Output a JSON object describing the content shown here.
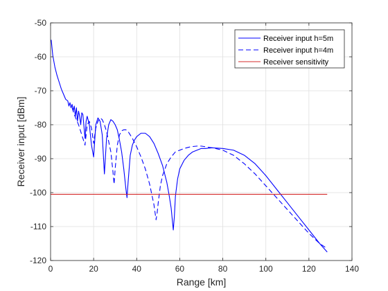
{
  "chart_data": {
    "type": "line",
    "xlabel": "Range [km]",
    "ylabel": "Receiver input [dBm]",
    "xlim": [
      0,
      140
    ],
    "ylim": [
      -120,
      -50
    ],
    "x_ticks": [
      0,
      20,
      40,
      60,
      80,
      100,
      120,
      140
    ],
    "y_ticks": [
      -50,
      -60,
      -70,
      -80,
      -90,
      -100,
      -110,
      -120
    ],
    "grid": true,
    "legend_position": "top-right",
    "series": [
      {
        "name": "Receiver input h=5m",
        "color": "#0000ff",
        "dash": "solid",
        "x": [
          0.3,
          1,
          2,
          3,
          4,
          5,
          6,
          7,
          8,
          8.5,
          9,
          9.5,
          10,
          10.5,
          11,
          11.5,
          12,
          12.5,
          13,
          13.5,
          14,
          14.5,
          15,
          16,
          16.5,
          17,
          18,
          19,
          20,
          21,
          22,
          23,
          24,
          25,
          26,
          27,
          28,
          29,
          30,
          31,
          32,
          33,
          34,
          35,
          35.5,
          36,
          37,
          38,
          39,
          40,
          42,
          44,
          46,
          48,
          50,
          52,
          54,
          55,
          56,
          57,
          57.5,
          58,
          59,
          60,
          62,
          64,
          66,
          68,
          70,
          72,
          75,
          80,
          85,
          90,
          95,
          100,
          105,
          110,
          115,
          120,
          125,
          128.5
        ],
        "y": [
          -55,
          -59.5,
          -63,
          -65.5,
          -67.5,
          -69.5,
          -71,
          -72.5,
          -73,
          -74.5,
          -73.5,
          -75,
          -74,
          -76,
          -74.5,
          -77.5,
          -75,
          -79,
          -76,
          -77.5,
          -80,
          -76.5,
          -77,
          -84,
          -79,
          -77.5,
          -80,
          -86,
          -89.5,
          -80,
          -78,
          -79,
          -83,
          -94.5,
          -84,
          -80,
          -78.5,
          -79,
          -80,
          -81.5,
          -84.5,
          -88,
          -93,
          -99,
          -101.5,
          -97,
          -89,
          -86,
          -84.5,
          -83.5,
          -82.5,
          -82.5,
          -83.5,
          -85.5,
          -88.5,
          -92,
          -97,
          -100.5,
          -104.5,
          -111,
          -107,
          -101,
          -96,
          -93,
          -90.5,
          -89,
          -88,
          -87.5,
          -87,
          -87,
          -86.8,
          -87,
          -87.5,
          -89,
          -91.5,
          -95,
          -99,
          -103,
          -107,
          -111,
          -115,
          -117.5
        ]
      },
      {
        "name": "Receiver input h=4m",
        "color": "#0000ff",
        "dash": "dashed",
        "x": [
          10,
          11,
          12,
          13,
          14,
          15,
          16,
          17,
          18,
          19,
          20,
          21,
          22,
          23,
          24,
          25,
          26,
          27,
          28,
          29,
          29.5,
          30,
          31,
          32,
          33,
          34,
          35,
          36,
          37,
          38,
          40,
          42,
          44,
          46,
          48,
          49,
          49.5,
          50,
          51,
          52,
          54,
          56,
          58,
          60,
          62,
          65,
          68,
          70,
          75,
          80,
          85,
          90,
          95,
          100,
          105,
          110,
          115,
          120,
          125,
          128.5
        ],
        "y": [
          -75,
          -77,
          -78.5,
          -80,
          -82,
          -84,
          -86,
          -80,
          -79,
          -81,
          -85.5,
          -81,
          -79,
          -78,
          -78.5,
          -80,
          -82,
          -85,
          -88,
          -94,
          -97.5,
          -93,
          -86,
          -83,
          -81.8,
          -81.5,
          -81.5,
          -82,
          -83,
          -84,
          -86.5,
          -89.5,
          -93,
          -97.5,
          -103.5,
          -108,
          -106,
          -103,
          -98,
          -95,
          -91.5,
          -89.5,
          -88,
          -87.5,
          -87,
          -86.5,
          -86.3,
          -86.3,
          -86.8,
          -87.5,
          -89,
          -91.5,
          -94.5,
          -98,
          -101.5,
          -105,
          -108.5,
          -112,
          -115,
          -116.5
        ]
      },
      {
        "name": "Receiver sensitivity",
        "color": "#d42a2a",
        "dash": "solid",
        "x": [
          0,
          128.5
        ],
        "y": [
          -100.5,
          -100.5
        ]
      }
    ]
  }
}
